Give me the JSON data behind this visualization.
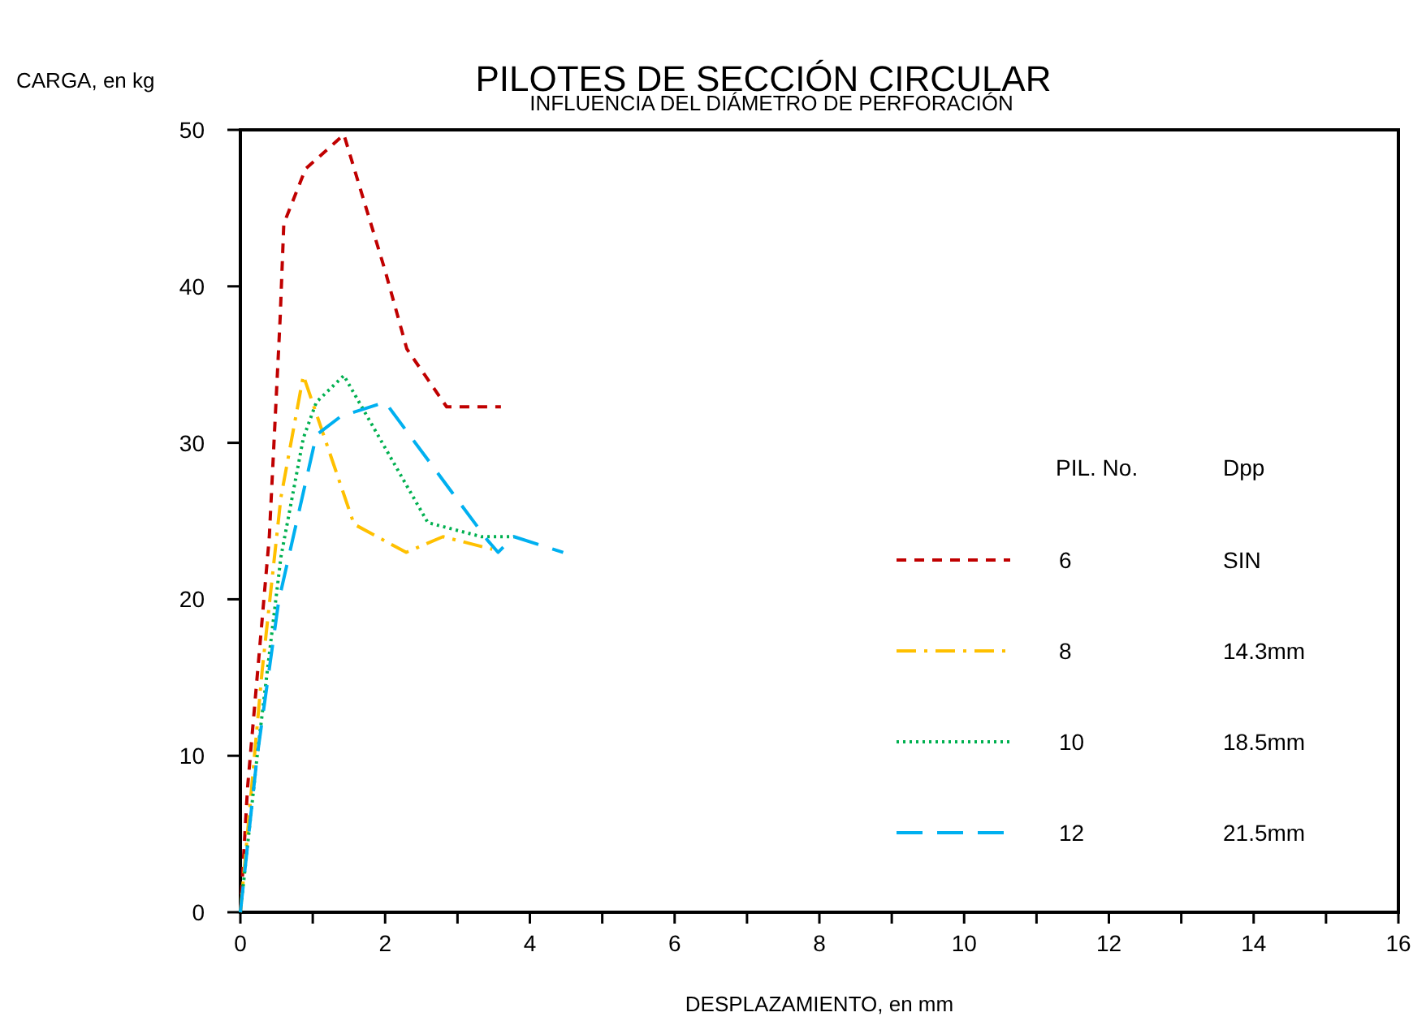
{
  "chart_data": {
    "type": "line",
    "title": "PILOTES DE SECCIÓN CIRCULAR",
    "subtitle": "INFLUENCIA DEL DIÁMETRO DE PERFORACIÓN",
    "xlabel": "DESPLAZAMIENTO, en mm",
    "ylabel": "CARGA, en kg",
    "legend_title": "PIL. No.",
    "annotations": [
      "Dpp",
      "SIN",
      "14.3mm",
      "18.5mm",
      "21.5mm"
    ],
    "series": [
      {
        "name": "6",
        "color": "#c00000",
        "line_style": "dashed",
        "x": [
          0,
          0.1,
          0.4,
          0.55,
          0.6,
          0.9,
          1.43,
          2.0,
          2.3,
          2.85,
          3.6
        ],
        "values": [
          0,
          8,
          24,
          38,
          44,
          47.5,
          49.7,
          41,
          36,
          32.3,
          32.3
        ]
      },
      {
        "name": "8",
        "color": "#ffc000",
        "line_style": "dashdot",
        "x": [
          0,
          0.3,
          0.56,
          0.87,
          1.57,
          2.29,
          2.8,
          3.48
        ],
        "values": [
          0,
          15.4,
          26.5,
          34.3,
          24.8,
          23,
          24,
          23.2
        ]
      },
      {
        "name": "10",
        "color": "#00b050",
        "line_style": "dotted",
        "x": [
          0,
          0.23,
          0.56,
          0.87,
          1.05,
          1.43,
          2.59,
          3.33,
          3.78
        ],
        "values": [
          0,
          9.9,
          22.7,
          30.3,
          32.6,
          34.3,
          24.9,
          24,
          24
        ]
      },
      {
        "name": "12",
        "color": "#00b0f0",
        "line_style": "longdash",
        "x": [
          0,
          0.23,
          0.53,
          1.05,
          1.39,
          2.0,
          3.41,
          3.56,
          3.78,
          4.46
        ],
        "values": [
          0,
          9.9,
          19.9,
          30.5,
          31.7,
          32.6,
          23.8,
          23,
          24,
          23
        ]
      }
    ],
    "xlim": [
      0,
      16
    ],
    "xticks": [
      0,
      {
        "value": 1,
        "label": null
      },
      2,
      {
        "value": 3,
        "label": null
      },
      4,
      {
        "value": 5,
        "label": null
      },
      6,
      {
        "value": 7,
        "label": null
      },
      8,
      {
        "value": 9,
        "label": null
      },
      10,
      {
        "value": 11,
        "label": null
      },
      12,
      {
        "value": 13,
        "label": null
      },
      14,
      {
        "value": 15,
        "label": null
      },
      16
    ],
    "ylim": [
      0,
      50
    ],
    "yticks": [
      0,
      10,
      20,
      30,
      40,
      50
    ],
    "grid": false,
    "legend": "right",
    "marker": "none"
  }
}
